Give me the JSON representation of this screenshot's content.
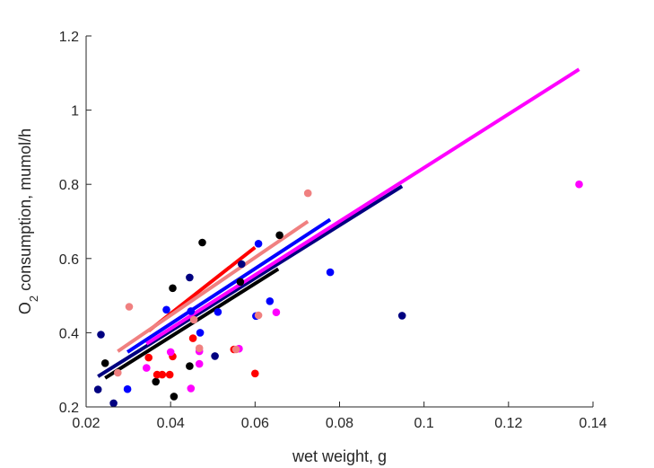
{
  "chart_data": {
    "type": "scatter",
    "xlabel": "wet weight, g",
    "ylabel": {
      "main": "O",
      "sub": "2",
      "rest": " consumption, mumol/h"
    },
    "xlim": [
      0.02,
      0.14
    ],
    "ylim": [
      0.2,
      1.2
    ],
    "xticks": [
      0.02,
      0.04,
      0.06,
      0.08,
      0.1,
      0.12,
      0.14
    ],
    "xtick_labels": [
      "0.02",
      "0.04",
      "0.06",
      "0.08",
      "0.1",
      "0.12",
      "0.14"
    ],
    "yticks": [
      0.2,
      0.4,
      0.6,
      0.8,
      1.0,
      1.2
    ],
    "ytick_labels": [
      "0.2",
      "0.4",
      "0.6",
      "0.8",
      "1",
      "1.2"
    ],
    "grid": false,
    "series": [
      {
        "color": "#000000",
        "points": [
          [
            0.0245,
            0.318
          ],
          [
            0.0365,
            0.268
          ],
          [
            0.0405,
            0.52
          ],
          [
            0.0408,
            0.228
          ],
          [
            0.0445,
            0.31
          ],
          [
            0.0475,
            0.643
          ],
          [
            0.0565,
            0.537
          ],
          [
            0.0658,
            0.663
          ]
        ],
        "fit": [
          [
            0.0245,
            0.278
          ],
          [
            0.0655,
            0.572
          ]
        ]
      },
      {
        "color": "#0000ff",
        "points": [
          [
            0.0298,
            0.248
          ],
          [
            0.039,
            0.462
          ],
          [
            0.0448,
            0.458
          ],
          [
            0.047,
            0.4
          ],
          [
            0.0512,
            0.456
          ],
          [
            0.0602,
            0.445
          ],
          [
            0.0608,
            0.64
          ],
          [
            0.0635,
            0.485
          ],
          [
            0.0778,
            0.563
          ]
        ],
        "fit": [
          [
            0.0298,
            0.348
          ],
          [
            0.0778,
            0.705
          ]
        ]
      },
      {
        "color": "#000080",
        "points": [
          [
            0.0228,
            0.247
          ],
          [
            0.0235,
            0.395
          ],
          [
            0.0265,
            0.21
          ],
          [
            0.0445,
            0.549
          ],
          [
            0.0505,
            0.337
          ],
          [
            0.0568,
            0.585
          ],
          [
            0.0948,
            0.446
          ]
        ],
        "fit": [
          [
            0.0228,
            0.282
          ],
          [
            0.0948,
            0.795
          ]
        ]
      },
      {
        "color": "#ff0000",
        "points": [
          [
            0.0348,
            0.333
          ],
          [
            0.0368,
            0.287
          ],
          [
            0.038,
            0.287
          ],
          [
            0.0398,
            0.287
          ],
          [
            0.0405,
            0.336
          ],
          [
            0.0453,
            0.385
          ],
          [
            0.055,
            0.355
          ],
          [
            0.06,
            0.29
          ]
        ],
        "fit": [
          [
            0.0348,
            0.405
          ],
          [
            0.06,
            0.63
          ]
        ]
      },
      {
        "color": "#ff00ff",
        "points": [
          [
            0.0343,
            0.305
          ],
          [
            0.04,
            0.348
          ],
          [
            0.0448,
            0.25
          ],
          [
            0.0468,
            0.35
          ],
          [
            0.0468,
            0.316
          ],
          [
            0.0562,
            0.357
          ],
          [
            0.065,
            0.455
          ],
          [
            0.1367,
            0.8
          ]
        ],
        "fit": [
          [
            0.0343,
            0.37
          ],
          [
            0.1367,
            1.11
          ]
        ]
      },
      {
        "color": "#f08080",
        "points": [
          [
            0.0275,
            0.292
          ],
          [
            0.0302,
            0.47
          ],
          [
            0.0455,
            0.435
          ],
          [
            0.0468,
            0.358
          ],
          [
            0.0555,
            0.355
          ],
          [
            0.0608,
            0.447
          ],
          [
            0.0725,
            0.776
          ]
        ],
        "fit": [
          [
            0.0275,
            0.35
          ],
          [
            0.0725,
            0.7
          ]
        ]
      }
    ]
  }
}
